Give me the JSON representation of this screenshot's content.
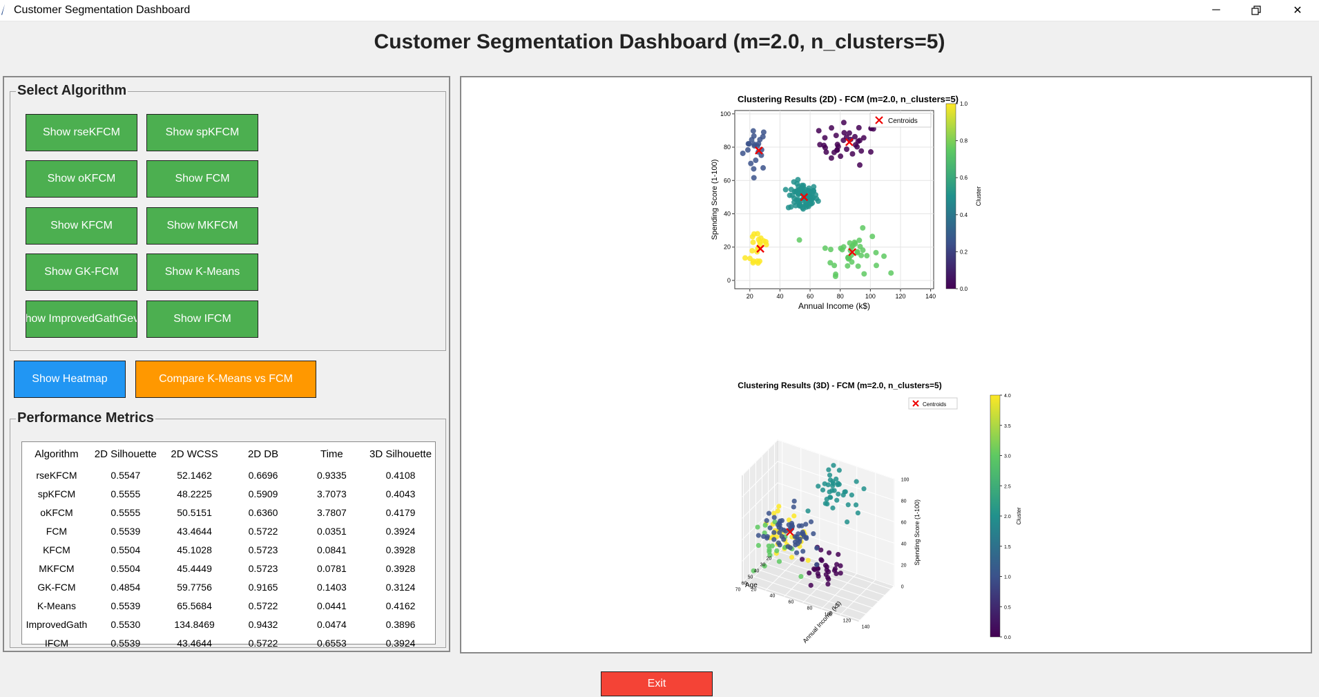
{
  "window": {
    "title": "Customer Segmentation Dashboard"
  },
  "heading": "Customer Segmentation Dashboard (m=2.0, n_clusters=5)",
  "algorithm_group": {
    "title": "Select Algorithm",
    "buttons": [
      "Show rseKFCM",
      "Show spKFCM",
      "Show oKFCM",
      "Show FCM",
      "Show KFCM",
      "Show MKFCM",
      "Show GK-FCM",
      "Show K-Means",
      "Show ImprovedGathGeva",
      "Show IFCM"
    ]
  },
  "actions": {
    "heatmap": "Show Heatmap",
    "compare": "Compare K-Means vs FCM",
    "exit": "Exit"
  },
  "metrics": {
    "title": "Performance Metrics",
    "columns": [
      "Algorithm",
      "2D Silhouette",
      "2D WCSS",
      "2D DB",
      "Time",
      "3D Silhouette"
    ],
    "rows": [
      [
        "rseKFCM",
        "0.5547",
        "52.1462",
        "0.6696",
        "0.9335",
        "0.4108"
      ],
      [
        "spKFCM",
        "0.5555",
        "48.2225",
        "0.5909",
        "3.7073",
        "0.4043"
      ],
      [
        "oKFCM",
        "0.5555",
        "50.5151",
        "0.6360",
        "3.7807",
        "0.4179"
      ],
      [
        "FCM",
        "0.5539",
        "43.4644",
        "0.5722",
        "0.0351",
        "0.3924"
      ],
      [
        "KFCM",
        "0.5504",
        "45.1028",
        "0.5723",
        "0.0841",
        "0.3928"
      ],
      [
        "MKFCM",
        "0.5504",
        "45.4449",
        "0.5723",
        "0.0781",
        "0.3928"
      ],
      [
        "GK-FCM",
        "0.4854",
        "59.7756",
        "0.9165",
        "0.1403",
        "0.3124"
      ],
      [
        "K-Means",
        "0.5539",
        "65.5684",
        "0.5722",
        "0.0441",
        "0.4162"
      ],
      [
        "ImprovedGath",
        "0.5530",
        "134.8469",
        "0.9432",
        "0.0474",
        "0.3896"
      ],
      [
        "IFCM",
        "0.5539",
        "43.4644",
        "0.5722",
        "0.6553",
        "0.3924"
      ]
    ]
  },
  "chart_data": [
    {
      "type": "scatter",
      "title": "Clustering Results (2D) - FCM (m=2.0, n_clusters=5)",
      "xlabel": "Annual Income (k$)",
      "ylabel": "Spending Score (1-100)",
      "xlim": [
        10,
        142
      ],
      "ylim": [
        -5,
        102
      ],
      "xticks": [
        20,
        40,
        60,
        80,
        100,
        120,
        140
      ],
      "yticks": [
        0,
        20,
        40,
        60,
        80,
        100
      ],
      "grid": true,
      "legend": {
        "entries": [
          "Centroids"
        ],
        "placement": "top-right"
      },
      "colorbar": {
        "label": "Cluster",
        "ticks": [
          0.0,
          0.2,
          0.4,
          0.6,
          0.8,
          1.0
        ],
        "tick_labels": [
          "0.0",
          "0.2",
          "0.4",
          "0.6",
          "0.8",
          "1.0"
        ]
      },
      "clusters": [
        {
          "color": "#3b528b",
          "cx": 24,
          "cy": 80,
          "sx": 6,
          "sy": 10,
          "n": 22
        },
        {
          "color": "#440154",
          "cx": 86,
          "cy": 82,
          "sx": 14,
          "sy": 9,
          "n": 36
        },
        {
          "color": "#21918c",
          "cx": 55,
          "cy": 50,
          "sx": 7,
          "sy": 6,
          "n": 80
        },
        {
          "color": "#fde725",
          "cx": 26,
          "cy": 20,
          "sx": 6,
          "sy": 11,
          "n": 22
        },
        {
          "color": "#5ec962",
          "cx": 87,
          "cy": 17,
          "sx": 14,
          "sy": 9,
          "n": 38
        }
      ],
      "centroids": [
        {
          "x": 26,
          "y": 78
        },
        {
          "x": 86,
          "y": 83
        },
        {
          "x": 56,
          "y": 50
        },
        {
          "x": 27,
          "y": 19
        },
        {
          "x": 88,
          "y": 17
        }
      ]
    },
    {
      "type": "scatter",
      "title": "Clustering Results (3D) - FCM (m=2.0, n_clusters=5)",
      "xlabel": "Age",
      "ylabel": "Annual Income (k$)",
      "zlabel": "Spending Score (1-100)",
      "xticks": [
        20,
        30,
        40,
        50,
        60,
        70
      ],
      "yticks": [
        20,
        40,
        60,
        80,
        100,
        120,
        140
      ],
      "zticks": [
        0,
        20,
        40,
        60,
        80,
        100
      ],
      "grid": true,
      "legend": {
        "entries": [
          "Centroids"
        ],
        "placement": "top-right"
      },
      "colorbar": {
        "label": "Cluster",
        "ticks": [
          0,
          0.5,
          1,
          1.5,
          2,
          2.5,
          3,
          3.5,
          4
        ],
        "tick_labels": [
          "0.0",
          "0.5",
          "1.0",
          "1.5",
          "2.0",
          "2.5",
          "3.0",
          "3.5",
          "4.0"
        ]
      },
      "clusters": [
        {
          "color": "#21918c",
          "age": 32,
          "income": 86,
          "score": 82,
          "n": 38
        },
        {
          "color": "#fde725",
          "age": 25,
          "income": 26,
          "score": 20,
          "n": 32
        },
        {
          "color": "#5ec962",
          "age": 45,
          "income": 26,
          "score": 20,
          "n": 18
        },
        {
          "color": "#440154",
          "age": 40,
          "income": 88,
          "score": 17,
          "n": 30
        },
        {
          "color": "#3b528b",
          "age": 55,
          "income": 55,
          "score": 49,
          "n": 60
        }
      ],
      "centroids": [
        {
          "age": 55,
          "income": 55,
          "score": 49
        }
      ]
    }
  ]
}
